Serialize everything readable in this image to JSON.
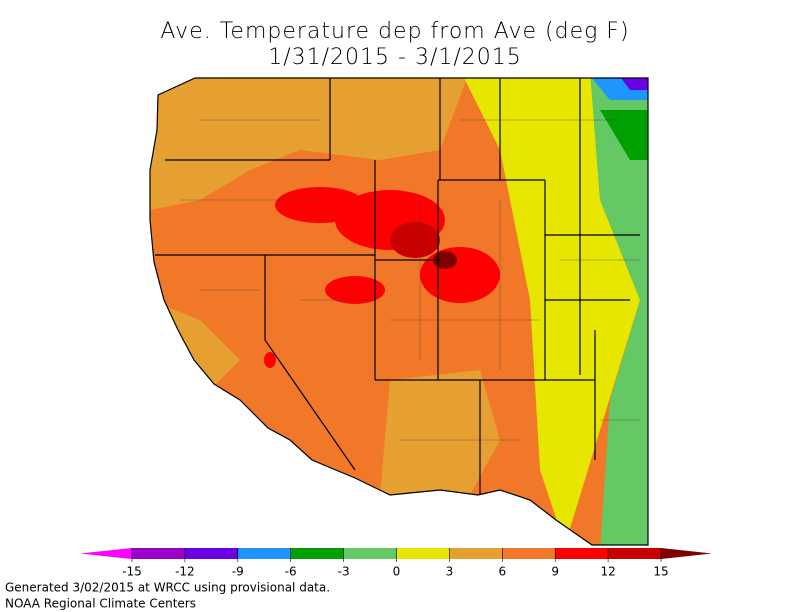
{
  "title": [
    "Ave. Temperature dep from Ave (deg F)",
    "1/31/2015 - 3/1/2015"
  ],
  "legend": {
    "ticks": [
      -15,
      -12,
      -9,
      -6,
      -3,
      0,
      3,
      6,
      9,
      12,
      15
    ],
    "below_color": "#ff00ff",
    "colors": [
      "#9b00c8",
      "#6a00e6",
      "#1e96ff",
      "#00a000",
      "#64c864",
      "#e6e600",
      "#e6a032",
      "#f07828",
      "#ff0000",
      "#c80000"
    ],
    "above_color": "#800000"
  },
  "footer": [
    "Generated 3/02/2015 at WRCC using provisional data.",
    "NOAA Regional Climate Centers"
  ]
}
